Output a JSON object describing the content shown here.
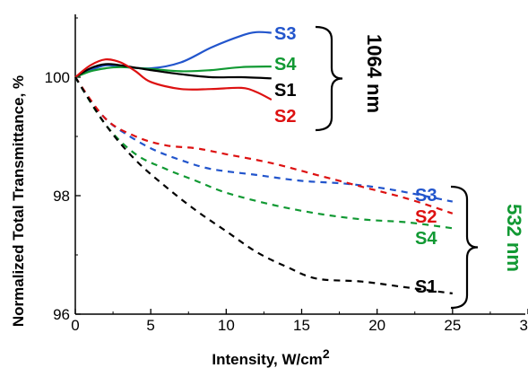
{
  "chart_data": {
    "type": "line",
    "xlabel": "Intensity, W/cm",
    "xlabel_sup": "2",
    "ylabel": "Normalized Total Transmittance, %",
    "xlim": [
      0,
      30
    ],
    "ylim": [
      96,
      101
    ],
    "xticks": [
      0,
      5,
      10,
      15,
      20,
      25,
      30
    ],
    "yticks": [
      96,
      98,
      100
    ],
    "grid": false,
    "groups": [
      {
        "name": "1064 nm",
        "color": "#000000",
        "line_style": "solid",
        "series": [
          {
            "name": "S3",
            "color": "#2255cc",
            "x": [
              0,
              1,
              2,
              3,
              5,
              7,
              9,
              11,
              12,
              13
            ],
            "y": [
              100.0,
              100.12,
              100.2,
              100.18,
              100.15,
              100.25,
              100.5,
              100.7,
              100.76,
              100.75
            ]
          },
          {
            "name": "S4",
            "color": "#119933",
            "x": [
              0,
              1,
              2,
              3,
              5,
              7,
              9,
              11,
              13
            ],
            "y": [
              100.0,
              100.1,
              100.15,
              100.17,
              100.14,
              100.1,
              100.12,
              100.17,
              100.18
            ]
          },
          {
            "name": "S1",
            "color": "#000000",
            "x": [
              0,
              1,
              2,
              3,
              5,
              7,
              9,
              11,
              13
            ],
            "y": [
              100.0,
              100.15,
              100.22,
              100.2,
              100.12,
              100.05,
              100.0,
              100.0,
              99.98
            ]
          },
          {
            "name": "S2",
            "color": "#dd1111",
            "x": [
              0,
              1,
              2,
              3,
              4,
              5,
              7,
              9,
              11,
              12,
              13
            ],
            "y": [
              100.0,
              100.2,
              100.3,
              100.25,
              100.1,
              99.92,
              99.8,
              99.8,
              99.82,
              99.75,
              99.62
            ]
          }
        ]
      },
      {
        "name": "532 nm",
        "color": "#119933",
        "line_style": "dashed",
        "series": [
          {
            "name": "S3",
            "color": "#2255cc",
            "x": [
              0,
              1,
              2,
              3,
              5,
              7,
              9,
              12,
              15,
              18,
              21,
              25
            ],
            "y": [
              100.0,
              99.6,
              99.3,
              99.1,
              98.8,
              98.6,
              98.45,
              98.35,
              98.25,
              98.2,
              98.1,
              97.9
            ]
          },
          {
            "name": "S2",
            "color": "#dd1111",
            "x": [
              0,
              2,
              4,
              6,
              8,
              10,
              13,
              16,
              19,
              22,
              25
            ],
            "y": [
              100.0,
              99.3,
              99.0,
              98.85,
              98.8,
              98.7,
              98.55,
              98.35,
              98.15,
              97.95,
              97.7
            ]
          },
          {
            "name": "S4",
            "color": "#119933",
            "x": [
              0,
              2,
              4,
              6,
              8,
              10,
              13,
              16,
              19,
              22,
              25
            ],
            "y": [
              100.0,
              99.2,
              98.7,
              98.45,
              98.25,
              98.05,
              97.85,
              97.7,
              97.6,
              97.55,
              97.45
            ]
          },
          {
            "name": "S1",
            "color": "#000000",
            "x": [
              0,
              2,
              4,
              6,
              8,
              10,
              12,
              14,
              16,
              19,
              22,
              25
            ],
            "y": [
              100.0,
              99.2,
              98.6,
              98.15,
              97.75,
              97.4,
              97.05,
              96.8,
              96.6,
              96.55,
              96.45,
              96.35
            ]
          }
        ]
      }
    ]
  }
}
